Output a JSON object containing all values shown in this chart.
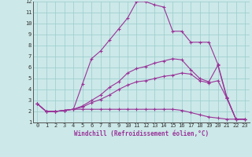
{
  "xlabel": "Windchill (Refroidissement éolien,°C)",
  "bg_color": "#cce8e8",
  "line_color": "#993399",
  "grid_color": "#99cccc",
  "xlim": [
    -0.5,
    23.5
  ],
  "ylim": [
    1,
    12
  ],
  "xticks": [
    0,
    1,
    2,
    3,
    4,
    5,
    6,
    7,
    8,
    9,
    10,
    11,
    12,
    13,
    14,
    15,
    16,
    17,
    18,
    19,
    20,
    21,
    22,
    23
  ],
  "yticks": [
    1,
    2,
    3,
    4,
    5,
    6,
    7,
    8,
    9,
    10,
    11,
    12
  ],
  "series": [
    [
      2.7,
      2.0,
      2.0,
      2.1,
      2.2,
      2.2,
      2.2,
      2.2,
      2.2,
      2.2,
      2.2,
      2.2,
      2.2,
      2.2,
      2.2,
      2.2,
      2.1,
      1.9,
      1.7,
      1.5,
      1.4,
      1.3,
      1.3,
      1.3
    ],
    [
      2.7,
      2.0,
      2.0,
      2.1,
      2.2,
      2.4,
      2.8,
      3.1,
      3.5,
      4.0,
      4.4,
      4.7,
      4.8,
      5.0,
      5.2,
      5.3,
      5.5,
      5.4,
      4.8,
      4.6,
      4.8,
      3.2,
      1.3,
      1.3
    ],
    [
      2.7,
      2.0,
      2.0,
      2.1,
      2.2,
      2.5,
      3.0,
      3.5,
      4.2,
      4.7,
      5.5,
      5.9,
      6.1,
      6.4,
      6.6,
      6.8,
      6.7,
      5.8,
      5.0,
      4.7,
      6.2,
      3.2,
      1.3,
      1.3
    ],
    [
      2.7,
      2.0,
      2.0,
      2.1,
      2.2,
      4.5,
      6.8,
      7.5,
      8.5,
      9.5,
      10.5,
      12.0,
      12.0,
      11.7,
      11.5,
      9.3,
      9.3,
      8.3,
      8.3,
      8.3,
      6.3,
      3.3,
      1.3,
      1.3
    ]
  ]
}
